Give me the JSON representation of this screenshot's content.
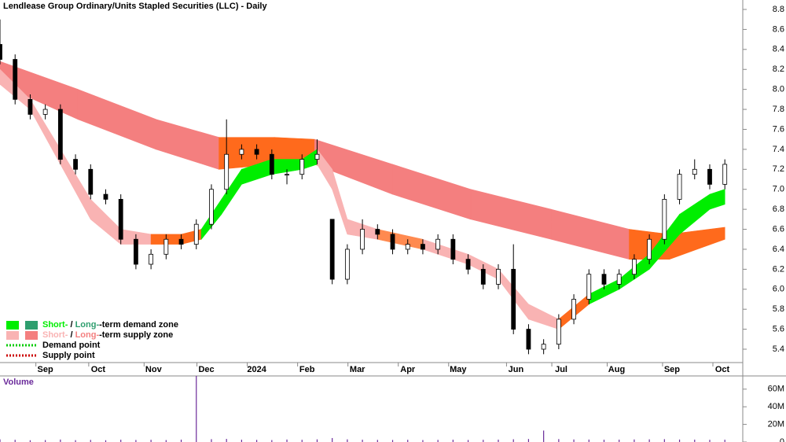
{
  "chart_data": {
    "type": "candlestick",
    "title": "Lendlease Group Ordinary/Units Stapled Securities (LLC) - Daily",
    "xlim": [
      0,
      292
    ],
    "xticks": [
      {
        "value": 18,
        "label": "Sep"
      },
      {
        "value": 39,
        "label": "Oct"
      },
      {
        "value": 61,
        "label": "Nov"
      },
      {
        "value": 82,
        "label": "Dec"
      },
      {
        "value": 102,
        "label": "2024"
      },
      {
        "value": 122,
        "label": "Feb"
      },
      {
        "value": 142,
        "label": "Mar"
      },
      {
        "value": 162,
        "label": "Apr"
      },
      {
        "value": 182,
        "label": "May"
      },
      {
        "value": 205,
        "label": "Jun"
      },
      {
        "value": 223,
        "label": "Jul"
      },
      {
        "value": 245,
        "label": "Aug"
      },
      {
        "value": 267,
        "label": "Sep"
      },
      {
        "value": 287,
        "label": "Oct"
      }
    ],
    "ylim": [
      5.2,
      8.9
    ],
    "yticks": [
      5.4,
      5.6,
      5.8,
      {
        "value": 6,
        "label": "6.0"
      },
      6.2,
      6.4,
      6.6,
      6.8,
      {
        "value": 7,
        "label": "7.0"
      },
      7.2,
      7.4,
      7.6,
      7.8,
      {
        "value": 8,
        "label": "8.0"
      },
      8.2,
      8.4,
      8.6,
      8.8
    ],
    "x": [
      0,
      6,
      12,
      18,
      24,
      30,
      36,
      42,
      48,
      54,
      60,
      66,
      72,
      78,
      84,
      90,
      96,
      102,
      108,
      114,
      120,
      126,
      132,
      138,
      144,
      150,
      156,
      162,
      168,
      174,
      180,
      186,
      192,
      198,
      204,
      210,
      216,
      222,
      228,
      234,
      240,
      246,
      252,
      258,
      264,
      270,
      276,
      282,
      288
    ],
    "open": [
      8.45,
      8.3,
      7.9,
      7.75,
      7.8,
      7.3,
      7.2,
      6.95,
      6.9,
      6.5,
      6.25,
      6.35,
      6.5,
      6.45,
      6.65,
      7.0,
      7.35,
      7.4,
      7.35,
      7.15,
      7.15,
      7.3,
      6.7,
      6.1,
      6.4,
      6.6,
      6.55,
      6.4,
      6.45,
      6.4,
      6.5,
      6.3,
      6.2,
      6.05,
      6.2,
      5.6,
      5.4,
      5.45,
      5.7,
      5.9,
      6.15,
      6.05,
      6.15,
      6.3,
      6.5,
      6.9,
      7.15,
      7.2,
      7.05
    ],
    "high": [
      8.7,
      8.35,
      7.95,
      7.85,
      7.85,
      7.35,
      7.25,
      7.0,
      6.95,
      6.55,
      6.4,
      6.55,
      6.55,
      6.7,
      7.05,
      7.7,
      7.45,
      7.45,
      7.4,
      7.2,
      7.35,
      7.5,
      6.7,
      6.45,
      6.7,
      6.65,
      6.6,
      6.5,
      6.5,
      6.55,
      6.55,
      6.35,
      6.25,
      6.25,
      6.45,
      5.65,
      5.5,
      5.75,
      5.95,
      6.2,
      6.2,
      6.2,
      6.35,
      6.55,
      6.95,
      7.2,
      7.3,
      7.25,
      7.3
    ],
    "low": [
      8.25,
      7.85,
      7.7,
      7.7,
      7.25,
      7.15,
      6.9,
      6.85,
      6.45,
      6.2,
      6.2,
      6.3,
      6.4,
      6.4,
      6.6,
      6.95,
      7.3,
      7.3,
      7.1,
      7.05,
      7.1,
      7.25,
      6.05,
      6.05,
      6.35,
      6.5,
      6.35,
      6.35,
      6.35,
      6.35,
      6.25,
      6.15,
      6.0,
      6.0,
      5.55,
      5.35,
      5.35,
      5.4,
      5.65,
      5.85,
      6.0,
      6.0,
      6.1,
      6.25,
      6.45,
      6.85,
      7.1,
      7.0,
      7.0
    ],
    "close": [
      8.3,
      7.9,
      7.75,
      7.8,
      7.3,
      7.2,
      6.95,
      6.9,
      6.5,
      6.25,
      6.35,
      6.5,
      6.45,
      6.65,
      7.0,
      7.35,
      7.4,
      7.35,
      7.15,
      7.15,
      7.3,
      7.35,
      6.1,
      6.4,
      6.6,
      6.55,
      6.4,
      6.45,
      6.4,
      6.5,
      6.3,
      6.2,
      6.05,
      6.2,
      5.6,
      5.4,
      5.45,
      5.7,
      5.9,
      6.15,
      6.05,
      6.15,
      6.3,
      6.5,
      6.9,
      7.15,
      7.2,
      7.05,
      7.25
    ],
    "bands": [
      {
        "x": [
          0,
          31,
          62,
          87,
          109,
          125,
          156,
          187,
          219,
          250,
          266,
          288
        ],
        "upper": [
          8.28,
          8.0,
          7.7,
          7.52,
          7.52,
          7.5,
          7.25,
          7.0,
          6.8,
          6.6,
          6.55,
          6.62
        ],
        "lower": [
          8.05,
          7.7,
          7.4,
          7.2,
          7.25,
          7.25,
          6.95,
          6.7,
          6.5,
          6.3,
          6.3,
          6.5
        ],
        "colors": [
          "#f47f7f",
          "#f47f7f",
          "#f47f7f",
          "#ff6a1c",
          "#ff6a1c",
          "#f47f7f",
          "#f47f7f",
          "#f47f7f",
          "#f47f7f",
          "#ff6a1c",
          "#ff6a1c"
        ]
      },
      {
        "x": [
          0,
          12,
          24,
          36,
          48,
          60,
          72,
          80,
          88,
          96,
          108,
          120,
          126,
          132,
          138,
          150,
          168,
          186,
          198,
          210,
          222,
          234,
          246,
          258,
          270,
          282,
          288
        ],
        "upper": [
          8.2,
          7.9,
          7.4,
          6.9,
          6.6,
          6.55,
          6.55,
          6.6,
          6.9,
          7.2,
          7.3,
          7.3,
          7.4,
          7.2,
          6.7,
          6.6,
          6.5,
          6.35,
          6.2,
          5.85,
          5.7,
          5.95,
          6.1,
          6.35,
          6.75,
          6.95,
          7.0
        ],
        "lower": [
          8.05,
          7.8,
          7.25,
          6.7,
          6.45,
          6.45,
          6.45,
          6.5,
          6.75,
          7.05,
          7.15,
          7.2,
          7.25,
          7.0,
          6.55,
          6.5,
          6.4,
          6.25,
          6.1,
          5.7,
          5.6,
          5.85,
          6.0,
          6.2,
          6.55,
          6.8,
          6.85
        ],
        "colors": [
          "#f9b3b3",
          "#f9b3b3",
          "#f9b3b3",
          "#f9b3b3",
          "#f9b3b3",
          "#ff6a1c",
          "#ff6a1c",
          "#00ee00",
          "#00ee00",
          "#00ee00",
          "#00ee00",
          "#00ee00",
          "#f9b3b3",
          "#f9b3b3",
          "#f9b3b3",
          "#ff8a50",
          "#f9b3b3",
          "#f9b3b3",
          "#f9b3b3",
          "#f9b3b3",
          "#ff6a1c",
          "#00ee00",
          "#00ee00",
          "#00ee00",
          "#00ee00",
          "#00ee00"
        ]
      }
    ],
    "legend": [
      {
        "short": "Short-",
        "sep": " / ",
        "long": "Long-",
        "rest": "-term demand zone",
        "colors": [
          "#00ee00",
          "#2e9e6e"
        ]
      },
      {
        "short": "Short-",
        "sep": " / ",
        "long": "Long-",
        "rest": "-term supply zone",
        "colors": [
          "#f9b3b3",
          "#f47f7f"
        ]
      },
      {
        "rest": "Demand point",
        "colors": [
          "#00cc00"
        ]
      },
      {
        "rest": "Supply point",
        "colors": [
          "#cc0000"
        ]
      }
    ],
    "volume": {
      "label": "Volume",
      "color": "#6a2a9a",
      "ylim": [
        0,
        75000000
      ],
      "yticks": [
        {
          "value": 0,
          "label": "0"
        },
        {
          "value": 20000000,
          "label": "20M"
        },
        {
          "value": 40000000,
          "label": "40M"
        },
        {
          "value": 60000000,
          "label": "60M"
        }
      ],
      "values": [
        3000000,
        2500000,
        2000000,
        2200000,
        2800000,
        2100000,
        2400000,
        2000000,
        2600000,
        2300000,
        2500000,
        2200000,
        2700000,
        75000000,
        3200000,
        3500000,
        2600000,
        2400000,
        2200000,
        2800000,
        2500000,
        3000000,
        4500000,
        3000000,
        2600000,
        2400000,
        2300000,
        2500000,
        2200000,
        2400000,
        2600000,
        2300000,
        2500000,
        2700000,
        3100000,
        3400000,
        13000000,
        3300000,
        2900000,
        2800000,
        2600000,
        2700000,
        2900000,
        3000000,
        3200000,
        2800000,
        2700000,
        2500000,
        2600000
      ]
    }
  }
}
